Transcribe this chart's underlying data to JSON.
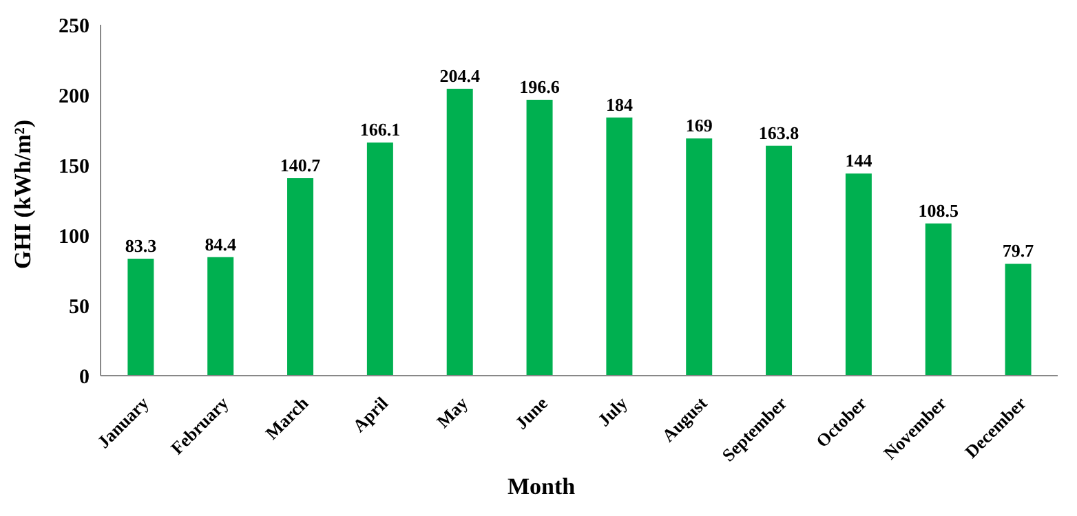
{
  "chart_data": {
    "type": "bar",
    "xlabel": "Month",
    "ylabel": "GHI (kWh/m²)",
    "categories": [
      "January",
      "February",
      "March",
      "April",
      "May",
      "June",
      "July",
      "August",
      "September",
      "October",
      "November",
      "December"
    ],
    "values": [
      83.3,
      84.4,
      140.7,
      166.1,
      204.4,
      196.6,
      184,
      169,
      163.8,
      144,
      108.5,
      79.7
    ],
    "color": "#00b050",
    "ylim": [
      0,
      250
    ],
    "yticks": [
      0,
      50,
      100,
      150,
      200,
      250
    ],
    "data_labels": true,
    "grid": false,
    "legend": false
  }
}
